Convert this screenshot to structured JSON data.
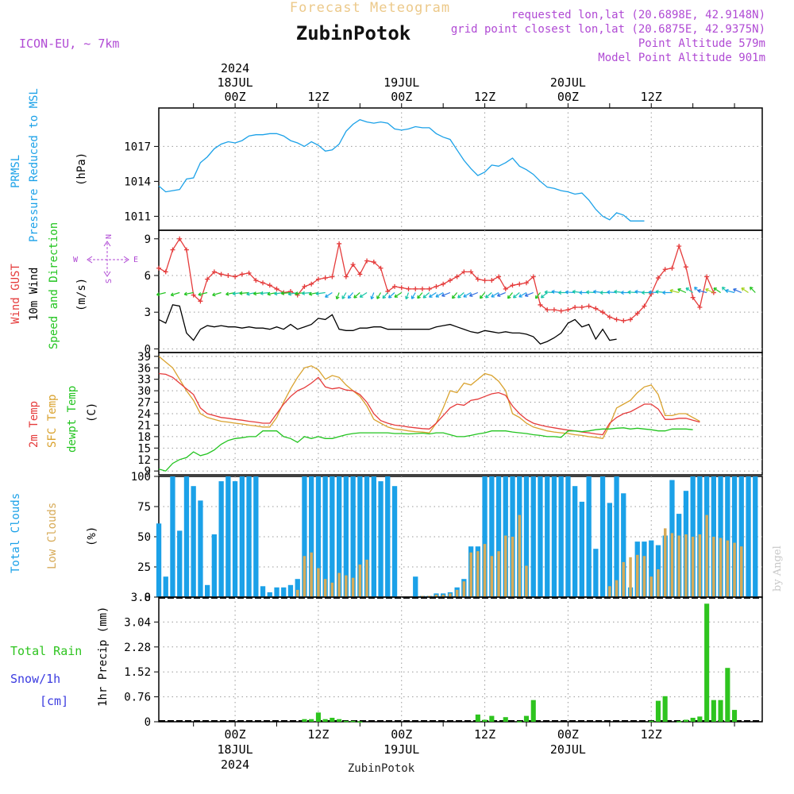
{
  "header": {
    "title": "Forecast Meteogram",
    "location": "ZubinPotok",
    "model": "ICON-EU, ~ 7km",
    "requested": "requested lon,lat (20.6898E, 42.9148N)",
    "closest": "grid point closest lon,lat (20.6875E, 42.9375N)",
    "point_alt": "Point Altitude 579m",
    "model_alt": "Model Point Altitude 901m",
    "footer_location": "ZubinPotok",
    "credit": "by Angel"
  },
  "time_axis": {
    "top_labels": [
      {
        "hour": 0,
        "lines": [
          "2024",
          "18JUL",
          "00Z"
        ]
      },
      {
        "hour": 12,
        "lines": [
          "12Z"
        ]
      },
      {
        "hour": 24,
        "lines": [
          "19JUL",
          "00Z"
        ]
      },
      {
        "hour": 36,
        "lines": [
          "12Z"
        ]
      },
      {
        "hour": 48,
        "lines": [
          "20JUL",
          "00Z"
        ]
      },
      {
        "hour": 60,
        "lines": [
          "12Z"
        ]
      }
    ],
    "bottom_labels": [
      {
        "hour": 0,
        "lines": [
          "00Z",
          "18JUL",
          "2024"
        ]
      },
      {
        "hour": 12,
        "lines": [
          "12Z"
        ]
      },
      {
        "hour": 24,
        "lines": [
          "00Z",
          "19JUL"
        ]
      },
      {
        "hour": 36,
        "lines": [
          "12Z"
        ]
      },
      {
        "hour": 48,
        "lines": [
          "00Z",
          "20JUL"
        ]
      },
      {
        "hour": 60,
        "lines": [
          "12Z"
        ]
      }
    ]
  },
  "colors": {
    "pressure": "#1ba1e8",
    "gust": "#e53b3b",
    "wind": "#000000",
    "temp": "#e53b3b",
    "sfc": "#d9a22e",
    "dewpt": "#22c41f",
    "clouds": "#1ba1e8",
    "low": "#d7ab59",
    "rain": "#2ec41f",
    "snow": "#3b3be0",
    "header_purple": "#b04ad4",
    "title_tan": "#ecc98a"
  },
  "chart_data": [
    {
      "type": "line",
      "title": "PRMSL",
      "ylabel_lines": [
        "PRMSL",
        "Pressure Reduced to MSL"
      ],
      "unit": "(hPa)",
      "x_start_hour": -11,
      "x_step_hours": 1,
      "ylim": [
        1009.8,
        1020.3
      ],
      "yticks": [
        1011,
        1014,
        1017
      ],
      "ytick_labels": [
        "1011",
        "1014",
        "1017"
      ],
      "series": [
        {
          "values": [
            1013.6,
            1013.1,
            1013.2,
            1013.3,
            1014.2,
            1014.3,
            1015.6,
            1016.1,
            1016.8,
            1017.2,
            1017.4,
            1017.3,
            1017.5,
            1017.9,
            1018.0,
            1018.0,
            1018.1,
            1018.1,
            1017.9,
            1017.5,
            1017.3,
            1017.0,
            1017.4,
            1017.1,
            1016.6,
            1016.7,
            1017.2,
            1018.3,
            1018.9,
            1019.3,
            1019.1,
            1019.0,
            1019.1,
            1019.0,
            1018.5,
            1018.4,
            1018.5,
            1018.7,
            1018.6,
            1018.6,
            1018.1,
            1017.8,
            1017.6,
            1016.7,
            1015.8,
            1015.1,
            1014.5,
            1014.8,
            1015.4,
            1015.3,
            1015.6,
            1016.0,
            1015.3,
            1015.0,
            1014.6,
            1014.0,
            1013.5,
            1013.4,
            1013.2,
            1013.1,
            1012.9,
            1013.0,
            1012.4,
            1011.6,
            1011.0,
            1010.7,
            1011.3,
            1011.1,
            1010.6,
            1010.6,
            1010.6
          ]
        }
      ]
    },
    {
      "type": "line",
      "title": "Wind",
      "ylabel_lines": [
        "Wind GUST",
        "10m Wind",
        "Speed and Direction"
      ],
      "unit": "(m/s)",
      "compass": [
        "N",
        "S",
        "W",
        "E"
      ],
      "x_start_hour": -11,
      "x_step_hours": 1,
      "ylim": [
        -0.3,
        9.7
      ],
      "yticks": [
        0,
        3,
        6,
        9
      ],
      "ytick_labels": [
        "0",
        "3",
        "6",
        "9"
      ],
      "series": [
        {
          "name": "Wind GUST",
          "values": [
            6.6,
            6.3,
            8.1,
            9.0,
            8.1,
            4.4,
            3.9,
            5.7,
            6.3,
            6.1,
            6.0,
            5.9,
            6.1,
            6.2,
            5.6,
            5.4,
            5.2,
            4.9,
            4.6,
            4.7,
            4.4,
            5.1,
            5.3,
            5.7,
            5.8,
            5.9,
            8.6,
            5.9,
            6.9,
            6.1,
            7.2,
            7.1,
            6.6,
            4.7,
            5.1,
            5.0,
            4.9,
            4.9,
            4.9,
            4.9,
            5.1,
            5.3,
            5.6,
            5.9,
            6.3,
            6.3,
            5.7,
            5.6,
            5.6,
            5.9,
            4.9,
            5.2,
            5.3,
            5.4,
            5.9,
            3.6,
            3.2,
            3.2,
            3.1,
            3.2,
            3.4,
            3.4,
            3.5,
            3.3,
            3.0,
            2.6,
            2.4,
            2.3,
            2.4,
            2.9,
            3.5,
            4.5,
            5.8,
            6.5,
            6.6,
            8.4,
            6.7,
            4.2,
            3.4,
            5.9,
            4.6
          ]
        },
        {
          "name": "10m Wind",
          "values": [
            2.4,
            2.1,
            3.6,
            3.5,
            1.3,
            0.7,
            1.6,
            1.9,
            1.8,
            1.9,
            1.8,
            1.8,
            1.7,
            1.8,
            1.7,
            1.7,
            1.6,
            1.8,
            1.6,
            2.0,
            1.6,
            1.8,
            2.0,
            2.5,
            2.4,
            2.8,
            1.6,
            1.5,
            1.5,
            1.7,
            1.7,
            1.8,
            1.8,
            1.6,
            1.6,
            1.6,
            1.6,
            1.6,
            1.6,
            1.6,
            1.8,
            1.9,
            2.0,
            1.8,
            1.6,
            1.4,
            1.3,
            1.5,
            1.4,
            1.3,
            1.4,
            1.3,
            1.3,
            1.2,
            1.0,
            0.4,
            0.6,
            0.9,
            1.3,
            2.1,
            2.4,
            1.8,
            2.0,
            0.8,
            1.6,
            0.7,
            0.8
          ]
        }
      ]
    },
    {
      "type": "line",
      "title": "Temperature",
      "ylabel_lines": [
        "2m Temp",
        "SFC Temp",
        "dewpt Temp"
      ],
      "unit": "(C)",
      "x_start_hour": -11,
      "x_step_hours": 1,
      "ylim": [
        8,
        40
      ],
      "yticks": [
        9,
        12,
        15,
        18,
        21,
        24,
        27,
        30,
        33,
        36,
        39
      ],
      "ytick_labels": [
        "9",
        "12",
        "15",
        "18",
        "21",
        "24",
        "27",
        "30",
        "33",
        "36",
        "39"
      ],
      "series": [
        {
          "name": "2m Temp",
          "values": [
            34.5,
            34.3,
            33.5,
            32.0,
            30.5,
            29.0,
            25.5,
            24.0,
            23.5,
            23.0,
            22.8,
            22.5,
            22.3,
            22.0,
            21.8,
            21.5,
            21.5,
            24.0,
            26.5,
            28.5,
            30.0,
            30.8,
            32.0,
            33.5,
            31.0,
            30.5,
            30.8,
            30.2,
            30.0,
            29.0,
            27.0,
            24.0,
            22.2,
            21.5,
            21.0,
            20.8,
            20.5,
            20.3,
            20.1,
            20.0,
            21.5,
            23.5,
            25.5,
            26.5,
            26.2,
            27.5,
            27.8,
            28.5,
            29.2,
            29.5,
            28.8,
            26.0,
            24.0,
            22.5,
            21.5,
            21.0,
            20.6,
            20.3,
            20.0,
            19.7,
            19.5,
            19.2,
            19.0,
            18.7,
            18.5,
            21.5,
            23.0,
            24.0,
            24.5,
            25.5,
            26.5,
            26.5,
            25.2,
            22.5,
            22.5,
            22.8,
            22.8,
            22.3,
            21.8
          ]
        },
        {
          "name": "SFC Temp",
          "values": [
            39.0,
            37.5,
            36.0,
            33.0,
            30.0,
            27.5,
            24.0,
            23.0,
            22.5,
            22.0,
            21.8,
            21.5,
            21.3,
            21.0,
            20.8,
            20.5,
            20.5,
            23.0,
            27.0,
            30.5,
            33.5,
            36.0,
            36.5,
            35.5,
            33.0,
            34.0,
            33.5,
            31.5,
            30.0,
            28.5,
            26.0,
            22.5,
            21.5,
            20.5,
            20.0,
            19.8,
            19.5,
            19.3,
            19.2,
            19.0,
            21.5,
            25.5,
            30.0,
            29.5,
            32.0,
            31.5,
            33.0,
            34.5,
            34.0,
            32.5,
            30.0,
            24.0,
            23.0,
            21.5,
            20.5,
            20.0,
            19.5,
            19.2,
            19.0,
            18.8,
            18.5,
            18.3,
            18.0,
            17.8,
            17.5,
            21.0,
            25.5,
            26.5,
            27.5,
            29.5,
            31.0,
            31.5,
            29.0,
            23.5,
            23.5,
            24.0,
            24.0,
            23.0,
            22.0
          ]
        },
        {
          "name": "dewpt Temp",
          "values": [
            9.5,
            9.0,
            11.0,
            12.0,
            12.5,
            14.0,
            13.0,
            13.5,
            14.5,
            16.0,
            17.0,
            17.5,
            17.7,
            18.0,
            18.0,
            19.5,
            19.5,
            19.5,
            18.0,
            17.5,
            16.5,
            18.0,
            17.5,
            18.0,
            17.5,
            17.5,
            18.0,
            18.5,
            18.8,
            19.0,
            19.0,
            19.0,
            19.0,
            19.0,
            18.8,
            18.8,
            18.7,
            18.8,
            18.9,
            18.7,
            19.0,
            19.0,
            18.5,
            18.0,
            18.0,
            18.3,
            18.7,
            19.0,
            19.5,
            19.5,
            19.5,
            19.2,
            19.0,
            18.8,
            18.5,
            18.3,
            18.0,
            18.0,
            17.8,
            19.5,
            19.5,
            19.3,
            19.5,
            19.8,
            20.0,
            20.0,
            20.2,
            20.3,
            20.0,
            20.2,
            20.0,
            19.8,
            19.5,
            19.5,
            20.0,
            20.0,
            20.0,
            19.8
          ]
        }
      ]
    },
    {
      "type": "bar",
      "title": "Clouds",
      "ylabel_lines": [
        "Total Clouds",
        "Low Clouds"
      ],
      "unit": "(%)",
      "x_start_hour": -11,
      "x_step_hours": 1,
      "ylim": [
        0,
        100
      ],
      "yticks": [
        0,
        25,
        50,
        75,
        100
      ],
      "ytick_labels": [
        "0",
        "25",
        "50",
        "75",
        "100"
      ],
      "series": [
        {
          "name": "Total Clouds",
          "values": [
            61,
            17,
            100,
            55,
            100,
            92,
            80,
            10,
            52,
            96,
            100,
            96,
            100,
            100,
            100,
            9,
            4,
            8,
            8,
            10,
            15,
            100,
            100,
            100,
            100,
            100,
            100,
            100,
            100,
            100,
            100,
            100,
            96,
            100,
            92,
            0,
            0,
            17,
            1,
            1,
            3,
            3,
            4,
            8,
            15,
            42,
            42,
            100,
            100,
            100,
            100,
            100,
            100,
            100,
            100,
            100,
            100,
            100,
            100,
            100,
            92,
            79,
            100,
            40,
            100,
            78,
            100,
            86,
            8,
            46,
            46,
            47,
            43,
            51,
            97,
            69,
            88,
            100,
            100,
            100,
            100,
            100,
            100,
            100,
            100,
            100,
            100
          ]
        },
        {
          "name": "Low Clouds",
          "values": [
            0,
            0,
            0,
            0,
            0,
            0,
            0,
            0,
            0,
            0,
            0,
            0,
            0,
            0,
            0,
            0,
            0,
            0,
            0,
            0,
            6,
            34,
            37,
            24,
            15,
            12,
            20,
            18,
            16,
            27,
            31,
            0,
            0,
            0,
            0,
            0,
            0,
            0,
            1,
            1,
            2,
            2,
            3,
            6,
            13,
            37,
            38,
            44,
            34,
            38,
            51,
            50,
            68,
            26,
            0,
            0,
            0,
            0,
            0,
            0,
            0,
            0,
            0,
            0,
            0,
            9,
            14,
            29,
            33,
            35,
            34,
            17,
            23,
            57,
            53,
            51,
            52,
            50,
            52,
            68,
            50,
            49,
            47,
            45,
            42
          ]
        }
      ]
    },
    {
      "type": "bar",
      "title": "Precipitation",
      "ylabel_lines": [
        "Total Rain",
        "Snow/1h",
        "[cm]"
      ],
      "axis_label": "1hr Precip (mm)",
      "x_start_hour": -11,
      "x_step_hours": 1,
      "ylim": [
        0,
        3.8
      ],
      "yticks": [
        0,
        0.76,
        1.52,
        2.28,
        3.04,
        3.8
      ],
      "ytick_labels": [
        "0",
        "0.76",
        "1.52",
        "2.28",
        "3.04",
        "3.8"
      ],
      "series": [
        {
          "name": "Total Rain",
          "values": [
            0,
            0,
            0,
            0,
            0,
            0,
            0,
            0,
            0,
            0,
            0,
            0,
            0,
            0,
            0,
            0,
            0,
            0,
            0,
            0,
            0,
            0.08,
            0.08,
            0.28,
            0.08,
            0.12,
            0.08,
            0.03,
            0.03,
            0.01,
            0,
            0,
            0,
            0,
            0,
            0,
            0,
            0,
            0,
            0,
            0,
            0,
            0,
            0,
            0,
            0,
            0.22,
            0.06,
            0.18,
            0,
            0.14,
            0,
            0.02,
            0.18,
            0.66,
            0,
            0,
            0,
            0,
            0,
            0,
            0,
            0,
            0,
            0,
            0,
            0,
            0,
            0,
            0,
            0,
            0.03,
            0.64,
            0.78,
            0,
            0.02,
            0.06,
            0.12,
            0.16,
            3.6,
            0.66,
            0.66,
            1.64,
            0.36
          ]
        }
      ]
    }
  ]
}
